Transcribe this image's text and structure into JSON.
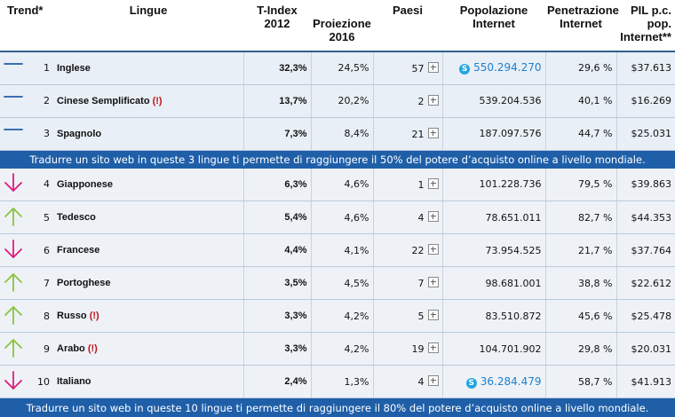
{
  "headers": {
    "trend": "Trend*",
    "lingue": "Lingue",
    "tindex": [
      "T-Index",
      "2012"
    ],
    "proiezione": [
      "Proiezione",
      "2016"
    ],
    "paesi": "Paesi",
    "popolazione": [
      "Popolazione",
      "Internet"
    ],
    "penetrazione": [
      "Penetrazione",
      "Internet"
    ],
    "pil": [
      "PIL p.c.",
      "pop.",
      "Internet**"
    ]
  },
  "rows_top": [
    {
      "rank": "1",
      "trend": "flat",
      "lang": "Inglese",
      "warn": "",
      "tindex": "32,3%",
      "proj": "24,5%",
      "paesi": "57",
      "pop": "550.294.270",
      "pop_link": true,
      "pen": "29,6 %",
      "pil": "$37.613"
    },
    {
      "rank": "2",
      "trend": "flat",
      "lang": "Cinese Semplificato",
      "warn": "(!)",
      "tindex": "13,7%",
      "proj": "20,2%",
      "paesi": "2",
      "pop": "539.204.536",
      "pop_link": false,
      "pen": "40,1 %",
      "pil": "$16.269"
    },
    {
      "rank": "3",
      "trend": "flat",
      "lang": "Spagnolo",
      "warn": "",
      "tindex": "7,3%",
      "proj": "8,4%",
      "paesi": "21",
      "pop": "187.097.576",
      "pop_link": false,
      "pen": "44,7 %",
      "pil": "$25.031"
    }
  ],
  "banner1": "Tradurre un sito web in queste 3 lingue ti permette di raggiungere il 50% del potere d’acquisto online a livello mondiale.",
  "rows_rest": [
    {
      "rank": "4",
      "trend": "down",
      "lang": "Giapponese",
      "warn": "",
      "tindex": "6,3%",
      "proj": "4,6%",
      "paesi": "1",
      "pop": "101.228.736",
      "pop_link": false,
      "pen": "79,5 %",
      "pil": "$39.863"
    },
    {
      "rank": "5",
      "trend": "up",
      "lang": "Tedesco",
      "warn": "",
      "tindex": "5,4%",
      "proj": "4,6%",
      "paesi": "4",
      "pop": "78.651.011",
      "pop_link": false,
      "pen": "82,7 %",
      "pil": "$44.353"
    },
    {
      "rank": "6",
      "trend": "down",
      "lang": "Francese",
      "warn": "",
      "tindex": "4,4%",
      "proj": "4,1%",
      "paesi": "22",
      "pop": "73.954.525",
      "pop_link": false,
      "pen": "21,7 %",
      "pil": "$37.764"
    },
    {
      "rank": "7",
      "trend": "up",
      "lang": "Portoghese",
      "warn": "",
      "tindex": "3,5%",
      "proj": "4,5%",
      "paesi": "7",
      "pop": "98.681.001",
      "pop_link": false,
      "pen": "38,8 %",
      "pil": "$22.612"
    },
    {
      "rank": "8",
      "trend": "up",
      "lang": "Russo",
      "warn": "(!)",
      "tindex": "3,3%",
      "proj": "4,2%",
      "paesi": "5",
      "pop": "83.510.872",
      "pop_link": false,
      "pen": "45,6 %",
      "pil": "$25.478"
    },
    {
      "rank": "9",
      "trend": "up",
      "lang": "Arabo",
      "warn": "(!)",
      "tindex": "3,3%",
      "proj": "4,2%",
      "paesi": "19",
      "pop": "104.701.902",
      "pop_link": false,
      "pen": "29,8 %",
      "pil": "$20.031"
    },
    {
      "rank": "10",
      "trend": "down",
      "lang": "Italiano",
      "warn": "",
      "tindex": "2,4%",
      "proj": "1,3%",
      "paesi": "4",
      "pop": "36.284.479",
      "pop_link": true,
      "pen": "58,7 %",
      "pil": "$41.913"
    }
  ],
  "banner2": "Tradurre un sito web in queste 10 lingue ti permette di raggiungere il 80% del potere d’acquisto online a livello mondiale.",
  "colors": {
    "flat": "#1f5fa8",
    "up": "#8cc43c",
    "down": "#e0197d",
    "banner": "#1f5fa8",
    "link": "#1a80d0",
    "warn": "#c0121a"
  },
  "icons": {
    "flat": "trend-flat-icon",
    "up": "trend-up-icon",
    "down": "trend-down-icon",
    "expand": "plus-box-icon",
    "skype": "skype-icon"
  }
}
